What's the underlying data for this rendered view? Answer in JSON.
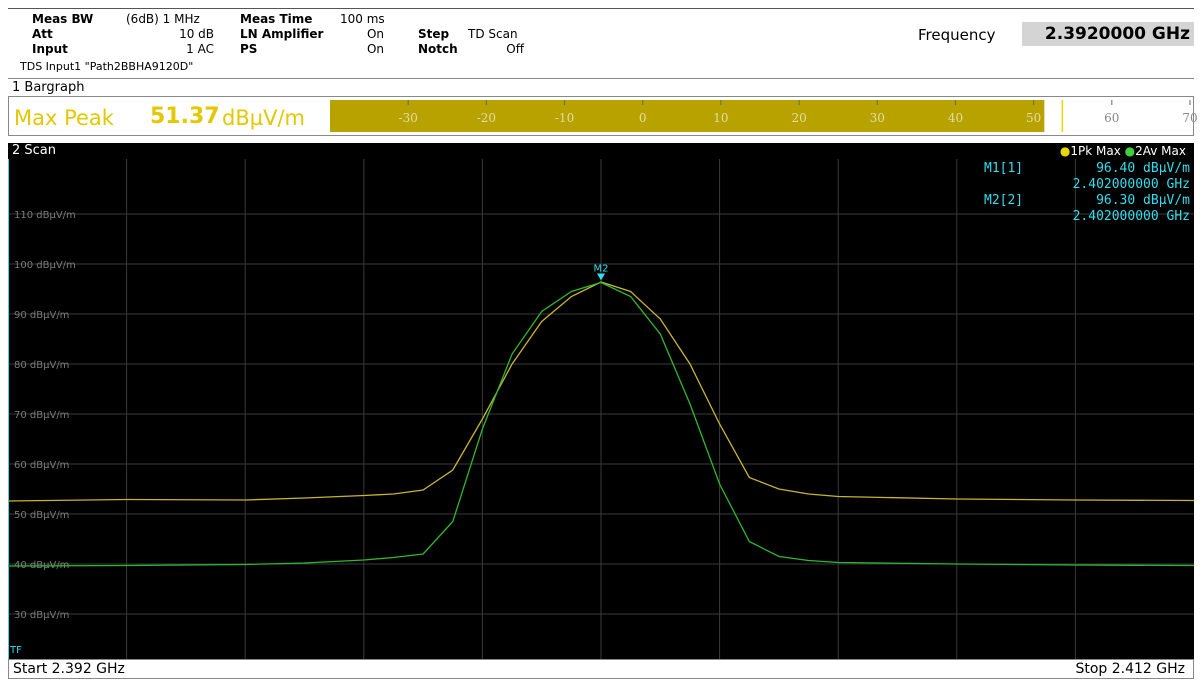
{
  "header": {
    "meas_bw_label": "Meas BW",
    "meas_bw_value": "(6dB) 1 MHz",
    "att_label": "Att",
    "att_value": "10 dB",
    "input_label": "Input",
    "input_value": "1 AC",
    "meas_time_label": "Meas Time",
    "meas_time_value": "100 ms",
    "ln_amp_label": "LN Amplifier",
    "ln_amp_value": "On",
    "ps_label": "PS",
    "ps_value": "On",
    "step_label": "Step",
    "step_value": "TD Scan",
    "notch_label": "Notch",
    "notch_value": "Off",
    "tds_line": "TDS Input1 \"Path2BBHA9120D\"",
    "frequency_label": "Frequency",
    "frequency_value": "2.3920000 GHz"
  },
  "bargraph": {
    "title": "1 Bargraph",
    "detector_label": "Max Peak",
    "value": "51.37",
    "unit": "dBµV/m",
    "level": 51.37,
    "scale_min": -40,
    "scale_max": 70,
    "scale_ticks": [
      "-30",
      "-20",
      "-10",
      "0",
      "10",
      "20",
      "30",
      "40",
      "50",
      "60",
      "70"
    ],
    "fill_color": "#b8a200",
    "marker_color": "#e8d800"
  },
  "scan": {
    "title": "2 Scan",
    "legend": [
      {
        "label": "1Pk Max",
        "color": "#e8d800"
      },
      {
        "label": "2Av Max",
        "color": "#3fcf3f"
      }
    ],
    "markers": [
      {
        "name": "M1[1]",
        "level": "96.40 dBµV/m",
        "freq": "2.402000000 GHz"
      },
      {
        "name": "M2[2]",
        "level": "96.30 dBµV/m",
        "freq": "2.402000000 GHz"
      }
    ],
    "marker_tag": "M2",
    "tf_label": "TF",
    "start_label": "Start 2.392 GHz",
    "stop_label": "Stop 2.412 GHz",
    "colors": {
      "peak": "#c8b430",
      "average": "#2fb82f",
      "marker": "#33ddee",
      "grid": "#3a3a3a",
      "label": "#7a7a7a"
    }
  },
  "chart_data": {
    "type": "line",
    "xlabel": "",
    "ylabel": "",
    "xlim": [
      2.392,
      2.412
    ],
    "ylim": [
      21,
      121
    ],
    "y_ticks": [
      "110 dBµV/m",
      "100 dBµV/m",
      "90 dBµV/m",
      "80 dBµV/m",
      "70 dBµV/m",
      "60 dBµV/m",
      "50 dBµV/m",
      "40 dBµV/m",
      "30 dBµV/m"
    ],
    "y_tick_values": [
      110,
      100,
      90,
      80,
      70,
      60,
      50,
      40,
      30
    ],
    "grid": true,
    "legend_position": "top-right",
    "series": [
      {
        "name": "1Pk Max",
        "x": [
          2.392,
          2.394,
          2.396,
          2.397,
          2.398,
          2.3985,
          2.399,
          2.3995,
          2.4,
          2.4005,
          2.401,
          2.4015,
          2.402,
          2.4025,
          2.403,
          2.4035,
          2.404,
          2.4045,
          2.405,
          2.4055,
          2.406,
          2.408,
          2.41,
          2.412
        ],
        "y": [
          52.6,
          52.9,
          52.8,
          53.2,
          53.7,
          54.0,
          54.8,
          58.8,
          69.0,
          80.0,
          88.5,
          93.5,
          96.4,
          94.5,
          89.0,
          80.0,
          68.0,
          57.3,
          55.0,
          54.0,
          53.5,
          53.0,
          52.8,
          52.7
        ]
      },
      {
        "name": "2Av Max",
        "x": [
          2.392,
          2.394,
          2.396,
          2.397,
          2.398,
          2.3985,
          2.399,
          2.3995,
          2.4,
          2.4005,
          2.401,
          2.4015,
          2.402,
          2.4025,
          2.403,
          2.4035,
          2.404,
          2.4045,
          2.405,
          2.4055,
          2.406,
          2.408,
          2.41,
          2.412
        ],
        "y": [
          39.6,
          39.7,
          39.9,
          40.2,
          40.8,
          41.3,
          42.0,
          48.5,
          67.0,
          82.0,
          90.5,
          94.5,
          96.3,
          93.5,
          86.0,
          72.0,
          56.0,
          44.5,
          41.5,
          40.7,
          40.3,
          40.0,
          39.8,
          39.7
        ]
      }
    ],
    "markers": [
      {
        "name": "M2",
        "x": 2.402,
        "y": 96.3
      }
    ]
  }
}
